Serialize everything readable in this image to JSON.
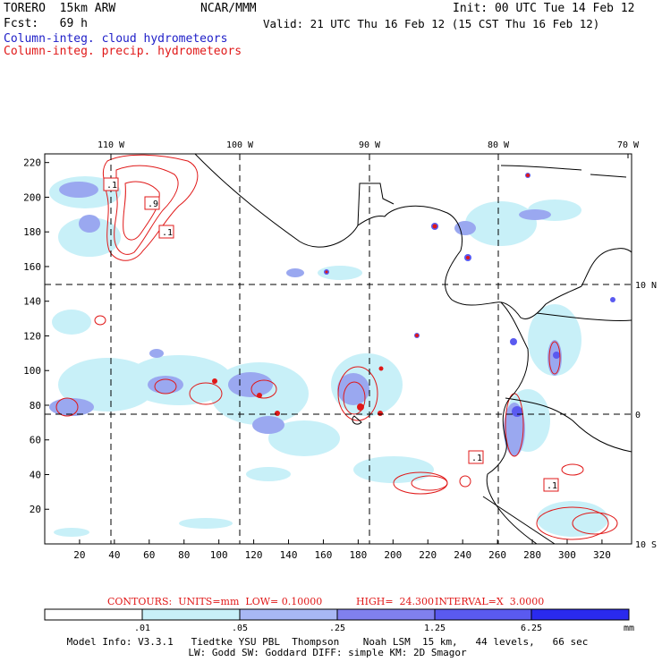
{
  "header": {
    "model": "TORERO  15km ARW",
    "org": "NCAR/MMM",
    "init": "Init: 00 UTC Tue 14 Feb 12",
    "fcst": "Fcst:   69 h",
    "valid": "Valid: 21 UTC Thu 16 Feb 12 (15 CST Thu 16 Feb 12)",
    "field1": "Column-integ. cloud hydrometeors",
    "field2": "Column-integ. precip. hydrometeors"
  },
  "colors": {
    "cloud_light": "#c8f0f8",
    "cloud_mid": "#9aa8f0",
    "cloud_dark": "#6a6aec",
    "cloud_darker": "#4040f0",
    "cloud_darkest": "#1e1ee8",
    "precip": "#e01818",
    "land": "#000000"
  },
  "map": {
    "lon_labels": [
      "110 W",
      "100 W",
      "90 W",
      "80 W",
      "70 W"
    ],
    "lat_labels": [
      "10 N",
      "0",
      "10 S"
    ],
    "y_ticks": [
      "220",
      "200",
      "180",
      "160",
      "140",
      "120",
      "100",
      "80",
      "60",
      "40",
      "20"
    ],
    "x_ticks": [
      "20",
      "40",
      "60",
      "80",
      "100",
      "120",
      "140",
      "160",
      "180",
      "200",
      "220",
      "240",
      "260",
      "280",
      "300",
      "320"
    ],
    "contour_labels": [
      ".1",
      ".9",
      ".1",
      ".1",
      ".1"
    ]
  },
  "contours_line": {
    "prefix": "CONTOURS:  UNITS=mm  LOW= 0.10000",
    "high": "HIGH=  24.300",
    "interval": "INTERVAL=X  3.0000"
  },
  "colorbar": {
    "labels": [
      ".01",
      ".05",
      ".25",
      "1.25",
      "6.25"
    ],
    "unit": "mm",
    "fills": [
      "#ffffff",
      "#c8f0f8",
      "#a8b8f4",
      "#8080ee",
      "#5a5af0",
      "#2a2aee"
    ]
  },
  "footer": {
    "line1": "Model Info: V3.3.1   Tiedtke YSU PBL  Thompson    Noah LSM  15 km,   44 levels,   66 sec",
    "line2": "LW: Godd SW: Goddard DIFF: simple KM: 2D Smagor"
  }
}
